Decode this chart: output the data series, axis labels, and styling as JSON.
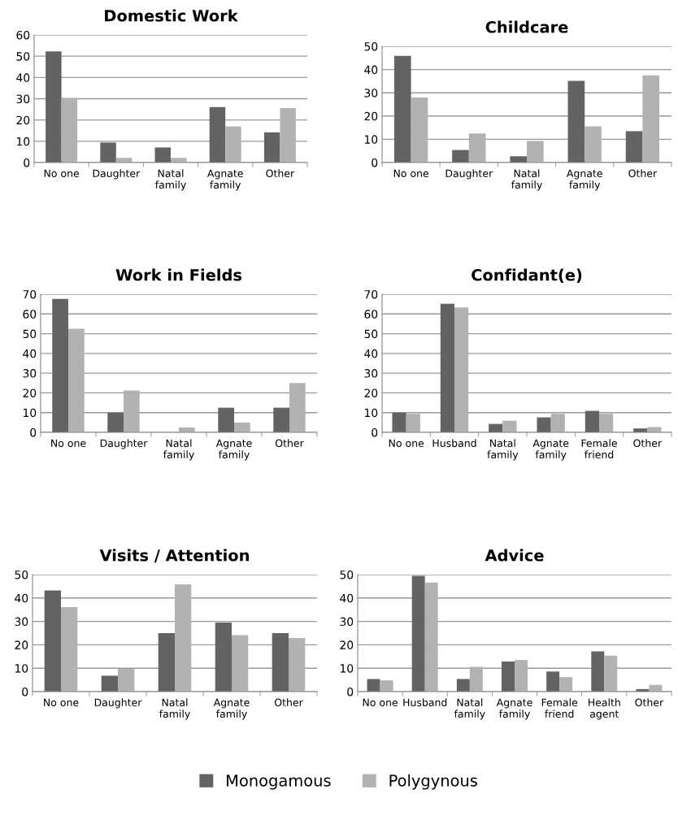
{
  "chart_data": [
    {
      "type": "bar",
      "title": "Domestic Work",
      "categories": [
        "No one",
        "Daughter",
        "Natal\nfamily",
        "Agnate\nfamily",
        "Other"
      ],
      "ylim": [
        0,
        60
      ],
      "yticks": [
        0,
        10,
        20,
        30,
        40,
        50,
        60
      ],
      "grid": "y",
      "legend": "bottom",
      "series": [
        {
          "name": "Monogamous",
          "color": "#636363",
          "values": [
            52.3,
            9.4,
            7.1,
            26.1,
            14.2
          ]
        },
        {
          "name": "Polygynous",
          "color": "#b2b2b2",
          "values": [
            30.4,
            2.2,
            2.2,
            17.0,
            25.6
          ]
        }
      ]
    },
    {
      "type": "bar",
      "title": "Childcare",
      "categories": [
        "No one",
        "Daughter",
        "Natal\nfamily",
        "Agnate\nfamily",
        "Other"
      ],
      "ylim": [
        0,
        50
      ],
      "yticks": [
        0,
        10,
        20,
        30,
        40,
        50
      ],
      "grid": "y",
      "series": [
        {
          "color": "#636363",
          "values": [
            45.9,
            5.4,
            2.7,
            35.1,
            13.5
          ]
        },
        {
          "color": "#b2b2b2",
          "values": [
            28.0,
            12.5,
            9.3,
            15.6,
            37.5
          ]
        }
      ]
    },
    {
      "type": "bar",
      "title": "Work in Fields",
      "categories": [
        "No one",
        "Daughter",
        "Natal\nfamily",
        "Agnate\nfamily",
        "Other"
      ],
      "ylim": [
        0,
        70
      ],
      "yticks": [
        0,
        10,
        20,
        30,
        40,
        50,
        60,
        70
      ],
      "grid": "y",
      "series": [
        {
          "color": "#636363",
          "values": [
            67.6,
            10.0,
            0,
            12.5,
            12.5
          ]
        },
        {
          "color": "#b2b2b2",
          "values": [
            52.5,
            21.2,
            2.5,
            5.0,
            25.0
          ]
        }
      ]
    },
    {
      "type": "bar",
      "title": "Confidant(e)",
      "categories": [
        "No one",
        "Husband",
        "Natal\nfamily",
        "Agnate\nfamily",
        "Female\nfriend",
        "Other"
      ],
      "ylim": [
        0,
        70
      ],
      "yticks": [
        0,
        10,
        20,
        30,
        40,
        50,
        60,
        70
      ],
      "grid": "y",
      "series": [
        {
          "color": "#636363",
          "values": [
            10.0,
            65.2,
            4.3,
            7.6,
            10.9,
            2.0
          ]
        },
        {
          "color": "#b2b2b2",
          "values": [
            9.4,
            63.3,
            5.9,
            9.4,
            9.4,
            2.7
          ]
        }
      ]
    },
    {
      "type": "bar",
      "title": "Visits / Attention",
      "categories": [
        "No one",
        "Daughter",
        "Natal\nfamily",
        "Agnate\nfamily",
        "Other"
      ],
      "ylim": [
        0,
        50
      ],
      "yticks": [
        0,
        10,
        20,
        30,
        40,
        50
      ],
      "grid": "y",
      "series": [
        {
          "color": "#636363",
          "values": [
            43.2,
            6.8,
            25.0,
            29.5,
            25.0
          ]
        },
        {
          "color": "#b2b2b2",
          "values": [
            36.1,
            9.7,
            45.8,
            24.1,
            22.9
          ]
        }
      ]
    },
    {
      "type": "bar",
      "title": "Advice",
      "categories": [
        "No one",
        "Husband",
        "Natal\nfamily",
        "Agnate\nfamily",
        "Female\nfriend",
        "Health\nagent",
        "Other"
      ],
      "ylim": [
        0,
        50
      ],
      "yticks": [
        0,
        10,
        20,
        30,
        40,
        50
      ],
      "grid": "y",
      "series": [
        {
          "color": "#636363",
          "values": [
            5.4,
            49.5,
            5.4,
            12.9,
            8.6,
            17.2,
            1.1
          ]
        },
        {
          "color": "#b2b2b2",
          "values": [
            4.8,
            46.6,
            10.6,
            13.5,
            6.2,
            15.4,
            2.9
          ]
        }
      ]
    }
  ]
}
